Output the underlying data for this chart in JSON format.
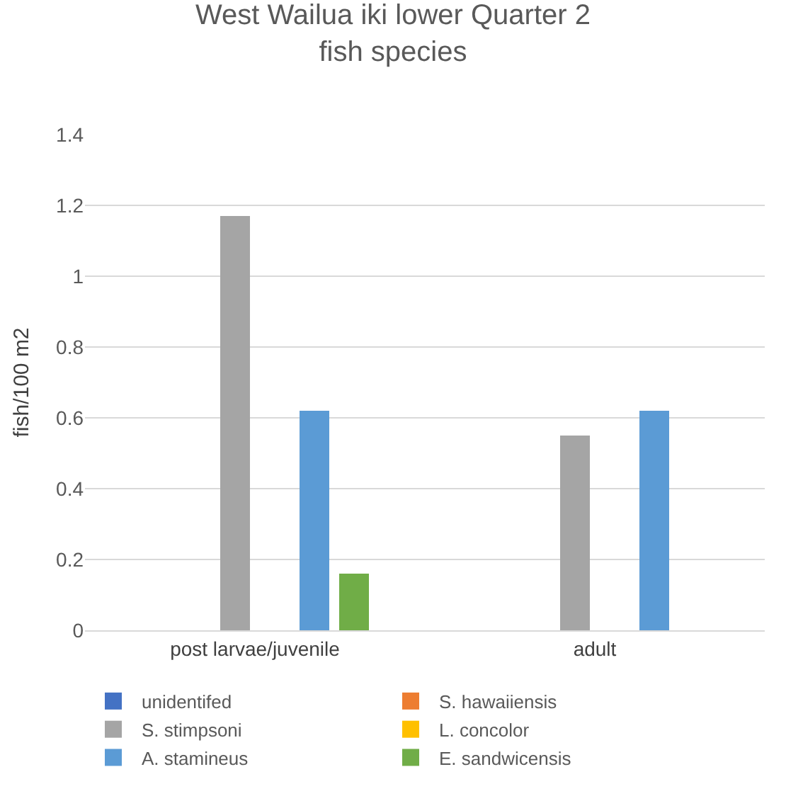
{
  "chart_data": {
    "type": "bar",
    "title": "West Wailua iki lower Quarter 2 fish species",
    "ylabel": "fish/100 m2",
    "categories": [
      "post larvae/juvenile",
      "adult"
    ],
    "series": [
      {
        "name": "unidentifed",
        "color": "#4472c4",
        "values": [
          0,
          0
        ]
      },
      {
        "name": "S. hawaiiensis",
        "color": "#ed7d31",
        "values": [
          0,
          0
        ]
      },
      {
        "name": "S. stimpsoni",
        "color": "#a5a5a5",
        "values": [
          1.17,
          0.55
        ]
      },
      {
        "name": "L. concolor",
        "color": "#ffc000",
        "values": [
          0,
          0
        ]
      },
      {
        "name": "A. stamineus",
        "color": "#5b9bd5",
        "values": [
          0.62,
          0.62
        ]
      },
      {
        "name": "E. sandwicensis",
        "color": "#70ad47",
        "values": [
          0.16,
          0
        ]
      }
    ],
    "ylim": [
      0,
      1.4
    ],
    "yticks": [
      0,
      0.2,
      0.4,
      0.6,
      0.8,
      1,
      1.2,
      1.4
    ],
    "grid": "y",
    "legend": "bottom"
  }
}
